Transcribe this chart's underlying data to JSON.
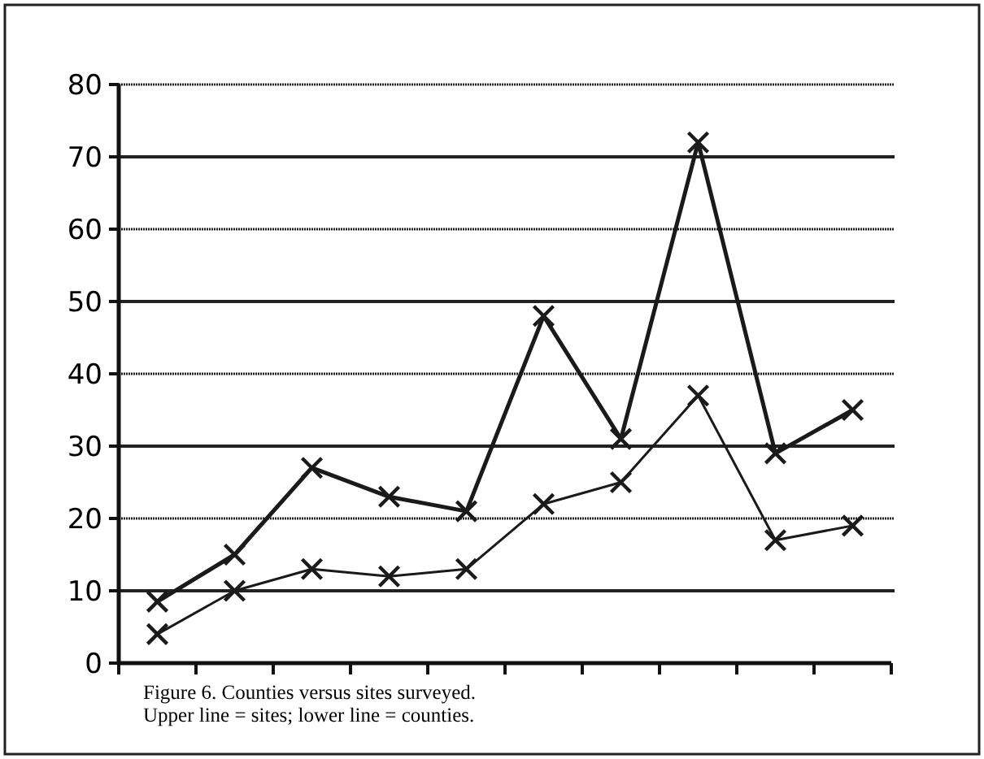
{
  "chart_data": {
    "type": "line",
    "categories": [
      null,
      null,
      null,
      null,
      null,
      null,
      null,
      null,
      null,
      null
    ],
    "series": [
      {
        "color": "#1a1a1a",
        "values": [
          8.5,
          15,
          27,
          23,
          21,
          48,
          31,
          72,
          29,
          35
        ]
      },
      {
        "color": "#1a1a1a",
        "values": [
          4,
          10,
          13,
          12,
          13,
          22,
          25,
          37,
          17,
          19
        ]
      }
    ],
    "ylim": [
      0,
      80
    ],
    "yticks": [
      0,
      10,
      20,
      30,
      40,
      50,
      60,
      70,
      80
    ],
    "grid": "y",
    "marker": "cross",
    "line_style": "solid",
    "annotations": [
      "Figure 6. Counties versus sites surveyed.",
      "Upper line = sites; lower line = counties."
    ]
  }
}
